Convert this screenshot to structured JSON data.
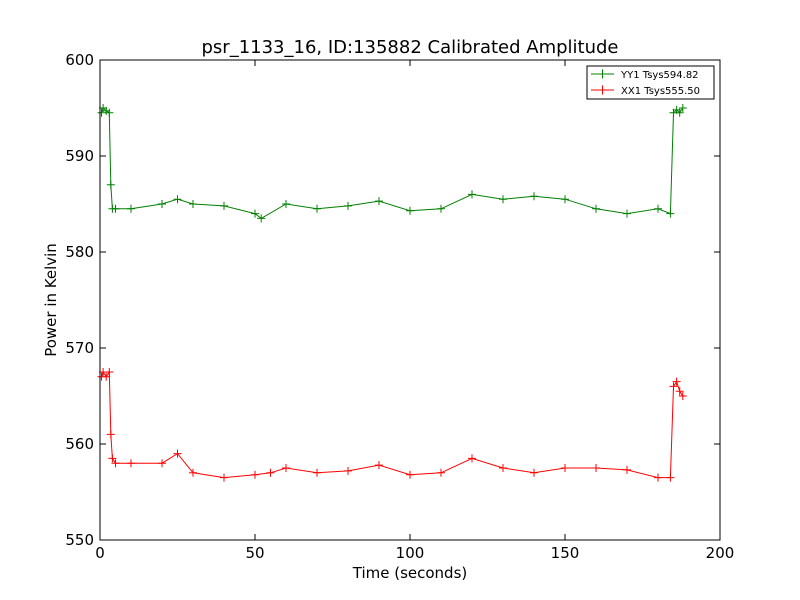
{
  "chart_data": {
    "type": "line",
    "title": "psr_1133_16, ID:135882 Calibrated Amplitude",
    "xlabel": "Time (seconds)",
    "ylabel": "Power in Kelvin",
    "xlim": [
      0,
      200
    ],
    "ylim": [
      550,
      600
    ],
    "xticks": [
      "0",
      "50",
      "100",
      "150",
      "200"
    ],
    "yticks": [
      "550",
      "560",
      "570",
      "580",
      "590",
      "600"
    ],
    "grid": false,
    "legend_position": "top-right",
    "marker": "+",
    "series": [
      {
        "name": "YY1 Tsys594.82",
        "color": "#008000",
        "x": [
          0.5,
          1,
          2,
          3,
          3.5,
          4,
          5,
          10,
          20,
          25,
          30,
          40,
          50,
          52,
          60,
          70,
          80,
          90,
          100,
          110,
          120,
          130,
          140,
          150,
          160,
          170,
          180,
          184,
          185,
          186,
          187,
          188
        ],
        "y": [
          594.5,
          595,
          594.7,
          594.5,
          587,
          584.5,
          584.5,
          584.5,
          585.0,
          585.5,
          585.0,
          584.8,
          584.0,
          583.5,
          585.0,
          584.5,
          584.8,
          585.3,
          584.3,
          584.5,
          586.0,
          585.5,
          585.8,
          585.5,
          584.5,
          584.0,
          584.5,
          584.0,
          594.5,
          594.8,
          594.5,
          595.0
        ]
      },
      {
        "name": "XX1 Tsys555.50",
        "color": "#ff0000",
        "x": [
          0.5,
          1,
          2,
          3,
          3.5,
          4,
          5,
          10,
          20,
          25,
          30,
          40,
          50,
          55,
          60,
          70,
          80,
          90,
          100,
          110,
          120,
          130,
          140,
          150,
          160,
          170,
          180,
          184,
          185,
          186,
          187,
          188
        ],
        "y": [
          567.0,
          567.5,
          567.0,
          567.5,
          561.0,
          558.5,
          558.0,
          558.0,
          558.0,
          559.0,
          557.0,
          556.5,
          556.8,
          557.0,
          557.5,
          557.0,
          557.2,
          557.8,
          556.8,
          557.0,
          558.5,
          557.5,
          557.0,
          557.5,
          557.5,
          557.3,
          556.5,
          556.5,
          566.0,
          566.5,
          565.5,
          565.0
        ]
      }
    ]
  }
}
